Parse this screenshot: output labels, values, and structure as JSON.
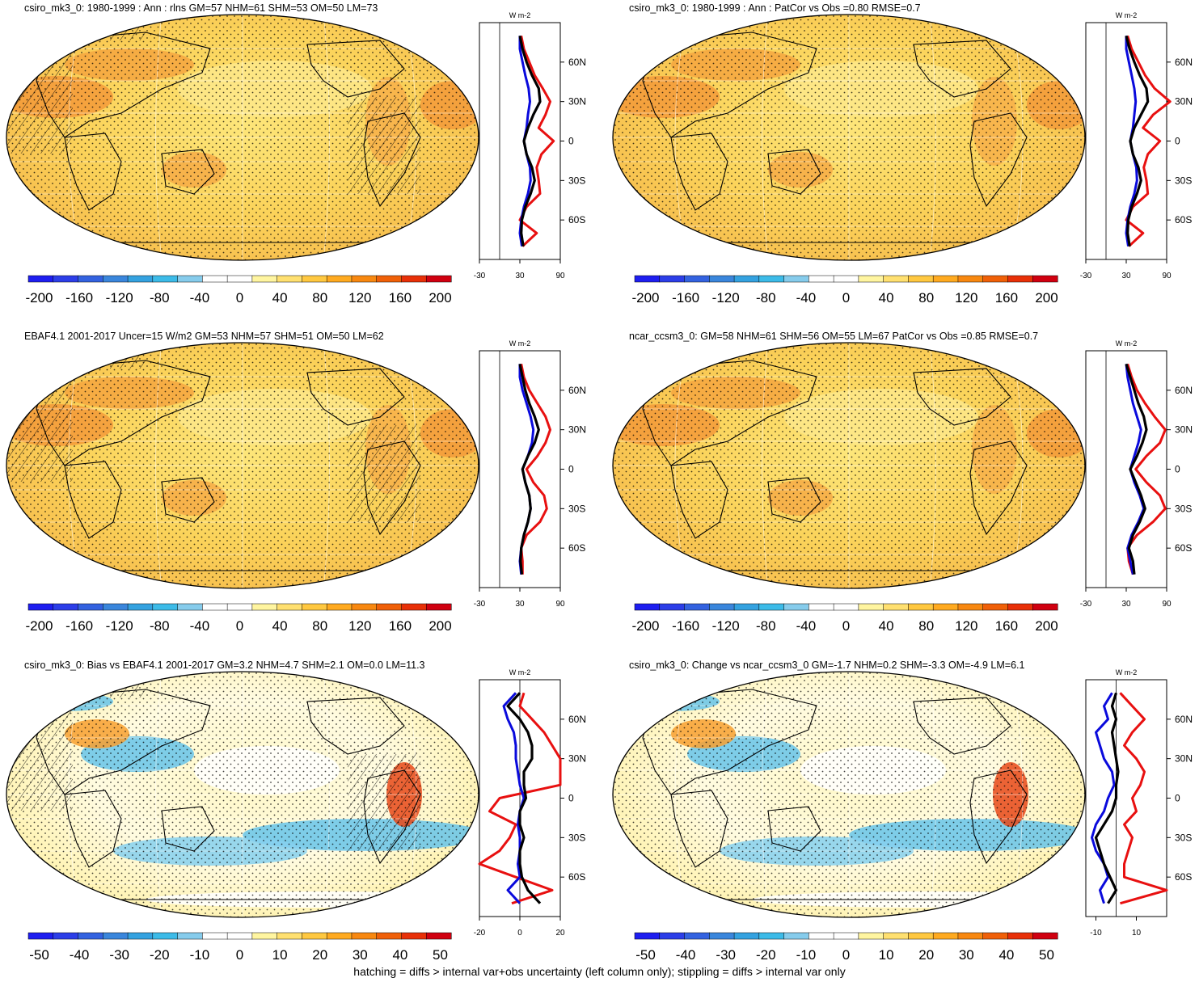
{
  "footer": "hatching = diffs > internal var+obs uncertainty (left column only); stippling = diffs > internal var only",
  "colors": {
    "palette": [
      "#1e1ef0",
      "#2c3ee8",
      "#3362e0",
      "#3a86dc",
      "#34a2e0",
      "#3cbbe8",
      "#86ccec",
      "#ffffff",
      "#ffffff",
      "#fff5a0",
      "#ffe070",
      "#ffc840",
      "#ffaa20",
      "#f88810",
      "#f06008",
      "#e83008",
      "#d00010"
    ],
    "blue_line": "#0a0adc",
    "red_line": "#e81010",
    "black_line": "#000000"
  },
  "chart_data": [
    {
      "type": "heatmap",
      "title": "csiro_mk3_0: 1980-1999 : Ann : rlns GM=57 NHM=61 SHM=53 OM=50 LM=73",
      "colorbar_ticks": [
        "-200",
        "-160",
        "-120",
        "-80",
        "-40",
        "0",
        "40",
        "80",
        "120",
        "160",
        "200"
      ],
      "zonal_profile": {
        "units": "W m-2",
        "xlim": [
          -30,
          90
        ],
        "x_ticks": [
          "-30",
          "30",
          "90"
        ],
        "lat_ticks": [
          "60N",
          "30N",
          "0",
          "30S",
          "60S"
        ],
        "lat": [
          80,
          70,
          60,
          50,
          40,
          30,
          20,
          10,
          0,
          -10,
          -20,
          -30,
          -40,
          -50,
          -60,
          -70,
          -80
        ],
        "series": [
          {
            "color": "black",
            "values": [
              30,
              34,
              40,
              48,
              58,
              60,
              50,
              42,
              36,
              40,
              48,
              52,
              46,
              38,
              33,
              32,
              35
            ]
          },
          {
            "color": "blue",
            "values": [
              30,
              30,
              34,
              38,
              43,
              45,
              42,
              40,
              36,
              40,
              45,
              46,
              42,
              36,
              32,
              30,
              33
            ]
          },
          {
            "color": "red",
            "values": [
              32,
              36,
              44,
              52,
              64,
              75,
              68,
              58,
              80,
              62,
              55,
              58,
              60,
              40,
              30,
              55,
              34
            ]
          }
        ]
      }
    },
    {
      "type": "heatmap",
      "title": "csiro_mk3_0: 1980-1999 : Ann : PatCor vs Obs =0.80 RMSE=0.7",
      "colorbar_ticks": [
        "-200",
        "-160",
        "-120",
        "-80",
        "-40",
        "0",
        "40",
        "80",
        "120",
        "160",
        "200"
      ],
      "zonal_profile": {
        "units": "W m-2",
        "xlim": [
          -30,
          90
        ],
        "x_ticks": [
          "-30",
          "30",
          "90"
        ],
        "lat_ticks": [
          "60N",
          "30N",
          "0",
          "30S",
          "60S"
        ],
        "lat": [
          80,
          70,
          60,
          50,
          40,
          30,
          20,
          10,
          0,
          -10,
          -20,
          -30,
          -40,
          -50,
          -60,
          -70,
          -80
        ],
        "series": [
          {
            "color": "black",
            "values": [
              30,
              35,
              42,
              50,
              60,
              62,
              52,
              42,
              36,
              40,
              48,
              52,
              46,
              38,
              33,
              32,
              35
            ]
          },
          {
            "color": "blue",
            "values": [
              30,
              30,
              34,
              38,
              42,
              44,
              42,
              40,
              36,
              40,
              45,
              46,
              42,
              36,
              32,
              30,
              33
            ]
          },
          {
            "color": "red",
            "values": [
              32,
              38,
              48,
              58,
              72,
              95,
              70,
              55,
              80,
              62,
              56,
              60,
              62,
              40,
              30,
              55,
              34
            ]
          }
        ]
      }
    },
    {
      "type": "heatmap",
      "title": "EBAF4.1 2001-2017 Uncer=15 W/m2 GM=53 NHM=57 SHM=51 OM=50 LM=62",
      "colorbar_ticks": [
        "-200",
        "-160",
        "-120",
        "-80",
        "-40",
        "0",
        "40",
        "80",
        "120",
        "160",
        "200"
      ],
      "zonal_profile": {
        "units": "W m-2",
        "xlim": [
          -30,
          90
        ],
        "x_ticks": [
          "-30",
          "30",
          "90"
        ],
        "lat_ticks": [
          "60N",
          "30N",
          "0",
          "30S",
          "60S"
        ],
        "lat": [
          80,
          70,
          60,
          50,
          40,
          30,
          20,
          10,
          0,
          -10,
          -20,
          -30,
          -40,
          -50,
          -60,
          -70,
          -80
        ],
        "series": [
          {
            "color": "black",
            "values": [
              30,
              34,
              38,
              44,
              52,
              58,
              52,
              42,
              34,
              38,
              44,
              46,
              42,
              36,
              32,
              31,
              33
            ]
          },
          {
            "color": "blue",
            "values": [
              30,
              30,
              34,
              40,
              46,
              50,
              48,
              42,
              34,
              38,
              44,
              46,
              42,
              36,
              32,
              30,
              32
            ]
          },
          {
            "color": "red",
            "values": [
              32,
              36,
              44,
              56,
              68,
              75,
              68,
              56,
              40,
              50,
              66,
              70,
              60,
              40,
              32,
              34,
              34
            ]
          }
        ]
      }
    },
    {
      "type": "heatmap",
      "title": "ncar_ccsm3_0: GM=58 NHM=61 SHM=56 OM=55 LM=67 PatCor vs Obs =0.85 RMSE=0.7",
      "colorbar_ticks": [
        "-200",
        "-160",
        "-120",
        "-80",
        "-40",
        "0",
        "40",
        "80",
        "120",
        "160",
        "200"
      ],
      "zonal_profile": {
        "units": "W m-2",
        "xlim": [
          -30,
          90
        ],
        "x_ticks": [
          "-30",
          "30",
          "90"
        ],
        "lat_ticks": [
          "60N",
          "30N",
          "0",
          "30S",
          "60S"
        ],
        "lat": [
          80,
          70,
          60,
          50,
          40,
          30,
          20,
          10,
          0,
          -10,
          -20,
          -30,
          -40,
          -50,
          -60,
          -70,
          -80
        ],
        "series": [
          {
            "color": "black",
            "values": [
              30,
              36,
              42,
              48,
              56,
              60,
              54,
              46,
              36,
              44,
              52,
              58,
              50,
              40,
              34,
              40,
              42
            ]
          },
          {
            "color": "blue",
            "values": [
              30,
              32,
              36,
              40,
              46,
              52,
              48,
              42,
              36,
              42,
              50,
              56,
              48,
              38,
              32,
              36,
              40
            ]
          },
          {
            "color": "red",
            "values": [
              32,
              38,
              46,
              58,
              72,
              88,
              80,
              60,
              44,
              60,
              80,
              88,
              70,
              46,
              32,
              34,
              40
            ]
          }
        ]
      }
    },
    {
      "type": "heatmap",
      "title": "csiro_mk3_0: Bias vs EBAF4.1 2001-2017 GM=3.2 NHM=4.7 SHM=2.1 OM=0.0 LM=11.3",
      "colorbar_ticks": [
        "-50",
        "-40",
        "-30",
        "-20",
        "-10",
        "0",
        "10",
        "20",
        "30",
        "40",
        "50"
      ],
      "zonal_profile": {
        "units": "W m-2",
        "xlim": [
          -20,
          20
        ],
        "x_ticks": [
          "-20",
          "0",
          "20"
        ],
        "lat_ticks": [
          "60N",
          "30N",
          "0",
          "30S",
          "60S"
        ],
        "lat": [
          80,
          70,
          60,
          50,
          40,
          30,
          20,
          10,
          0,
          -10,
          -20,
          -30,
          -40,
          -50,
          -60,
          -70,
          -80
        ],
        "series": [
          {
            "color": "black",
            "values": [
              0,
              -6,
              0,
              4,
              6,
              6,
              2,
              2,
              3,
              0,
              0,
              2,
              0,
              0,
              1,
              4,
              10
            ]
          },
          {
            "color": "blue",
            "values": [
              -2,
              -8,
              -6,
              -3,
              -2,
              -2,
              -1,
              0,
              2,
              0,
              -1,
              0,
              0,
              -1,
              0,
              -6,
              0
            ]
          },
          {
            "color": "red",
            "values": [
              2,
              0,
              6,
              12,
              16,
              20,
              20,
              20,
              -10,
              -15,
              -2,
              -5,
              -10,
              -20,
              -2,
              16,
              -4
            ]
          }
        ]
      }
    },
    {
      "type": "heatmap",
      "title": "csiro_mk3_0: Change vs ncar_ccsm3_0 GM=-1.7 NHM=0.2 SHM=-3.3 OM=-4.9 LM=6.1",
      "colorbar_ticks": [
        "-50",
        "-40",
        "-30",
        "-20",
        "-10",
        "0",
        "10",
        "20",
        "30",
        "40",
        "50"
      ],
      "zonal_profile": {
        "units": "W m-2",
        "xlim": [
          -15,
          25
        ],
        "x_ticks": [
          "-10",
          "10"
        ],
        "lat_ticks": [
          "60N",
          "30N",
          "0",
          "30S",
          "60S"
        ],
        "lat": [
          80,
          70,
          60,
          50,
          40,
          30,
          20,
          10,
          0,
          -10,
          -20,
          -30,
          -40,
          -50,
          -60,
          -70,
          -80
        ],
        "series": [
          {
            "color": "black",
            "values": [
              0,
              -2,
              0,
              -2,
              -1,
              0,
              1,
              0,
              0,
              -2,
              -6,
              -10,
              -8,
              -6,
              -3,
              0,
              -4
            ]
          },
          {
            "color": "blue",
            "values": [
              -2,
              -6,
              -4,
              -10,
              -8,
              -6,
              -2,
              -1,
              -4,
              -6,
              -10,
              -12,
              -10,
              -6,
              -4,
              -8,
              -6
            ]
          },
          {
            "color": "red",
            "values": [
              2,
              8,
              14,
              8,
              4,
              10,
              14,
              12,
              8,
              10,
              4,
              8,
              6,
              4,
              4,
              25,
              2
            ]
          }
        ]
      }
    }
  ]
}
